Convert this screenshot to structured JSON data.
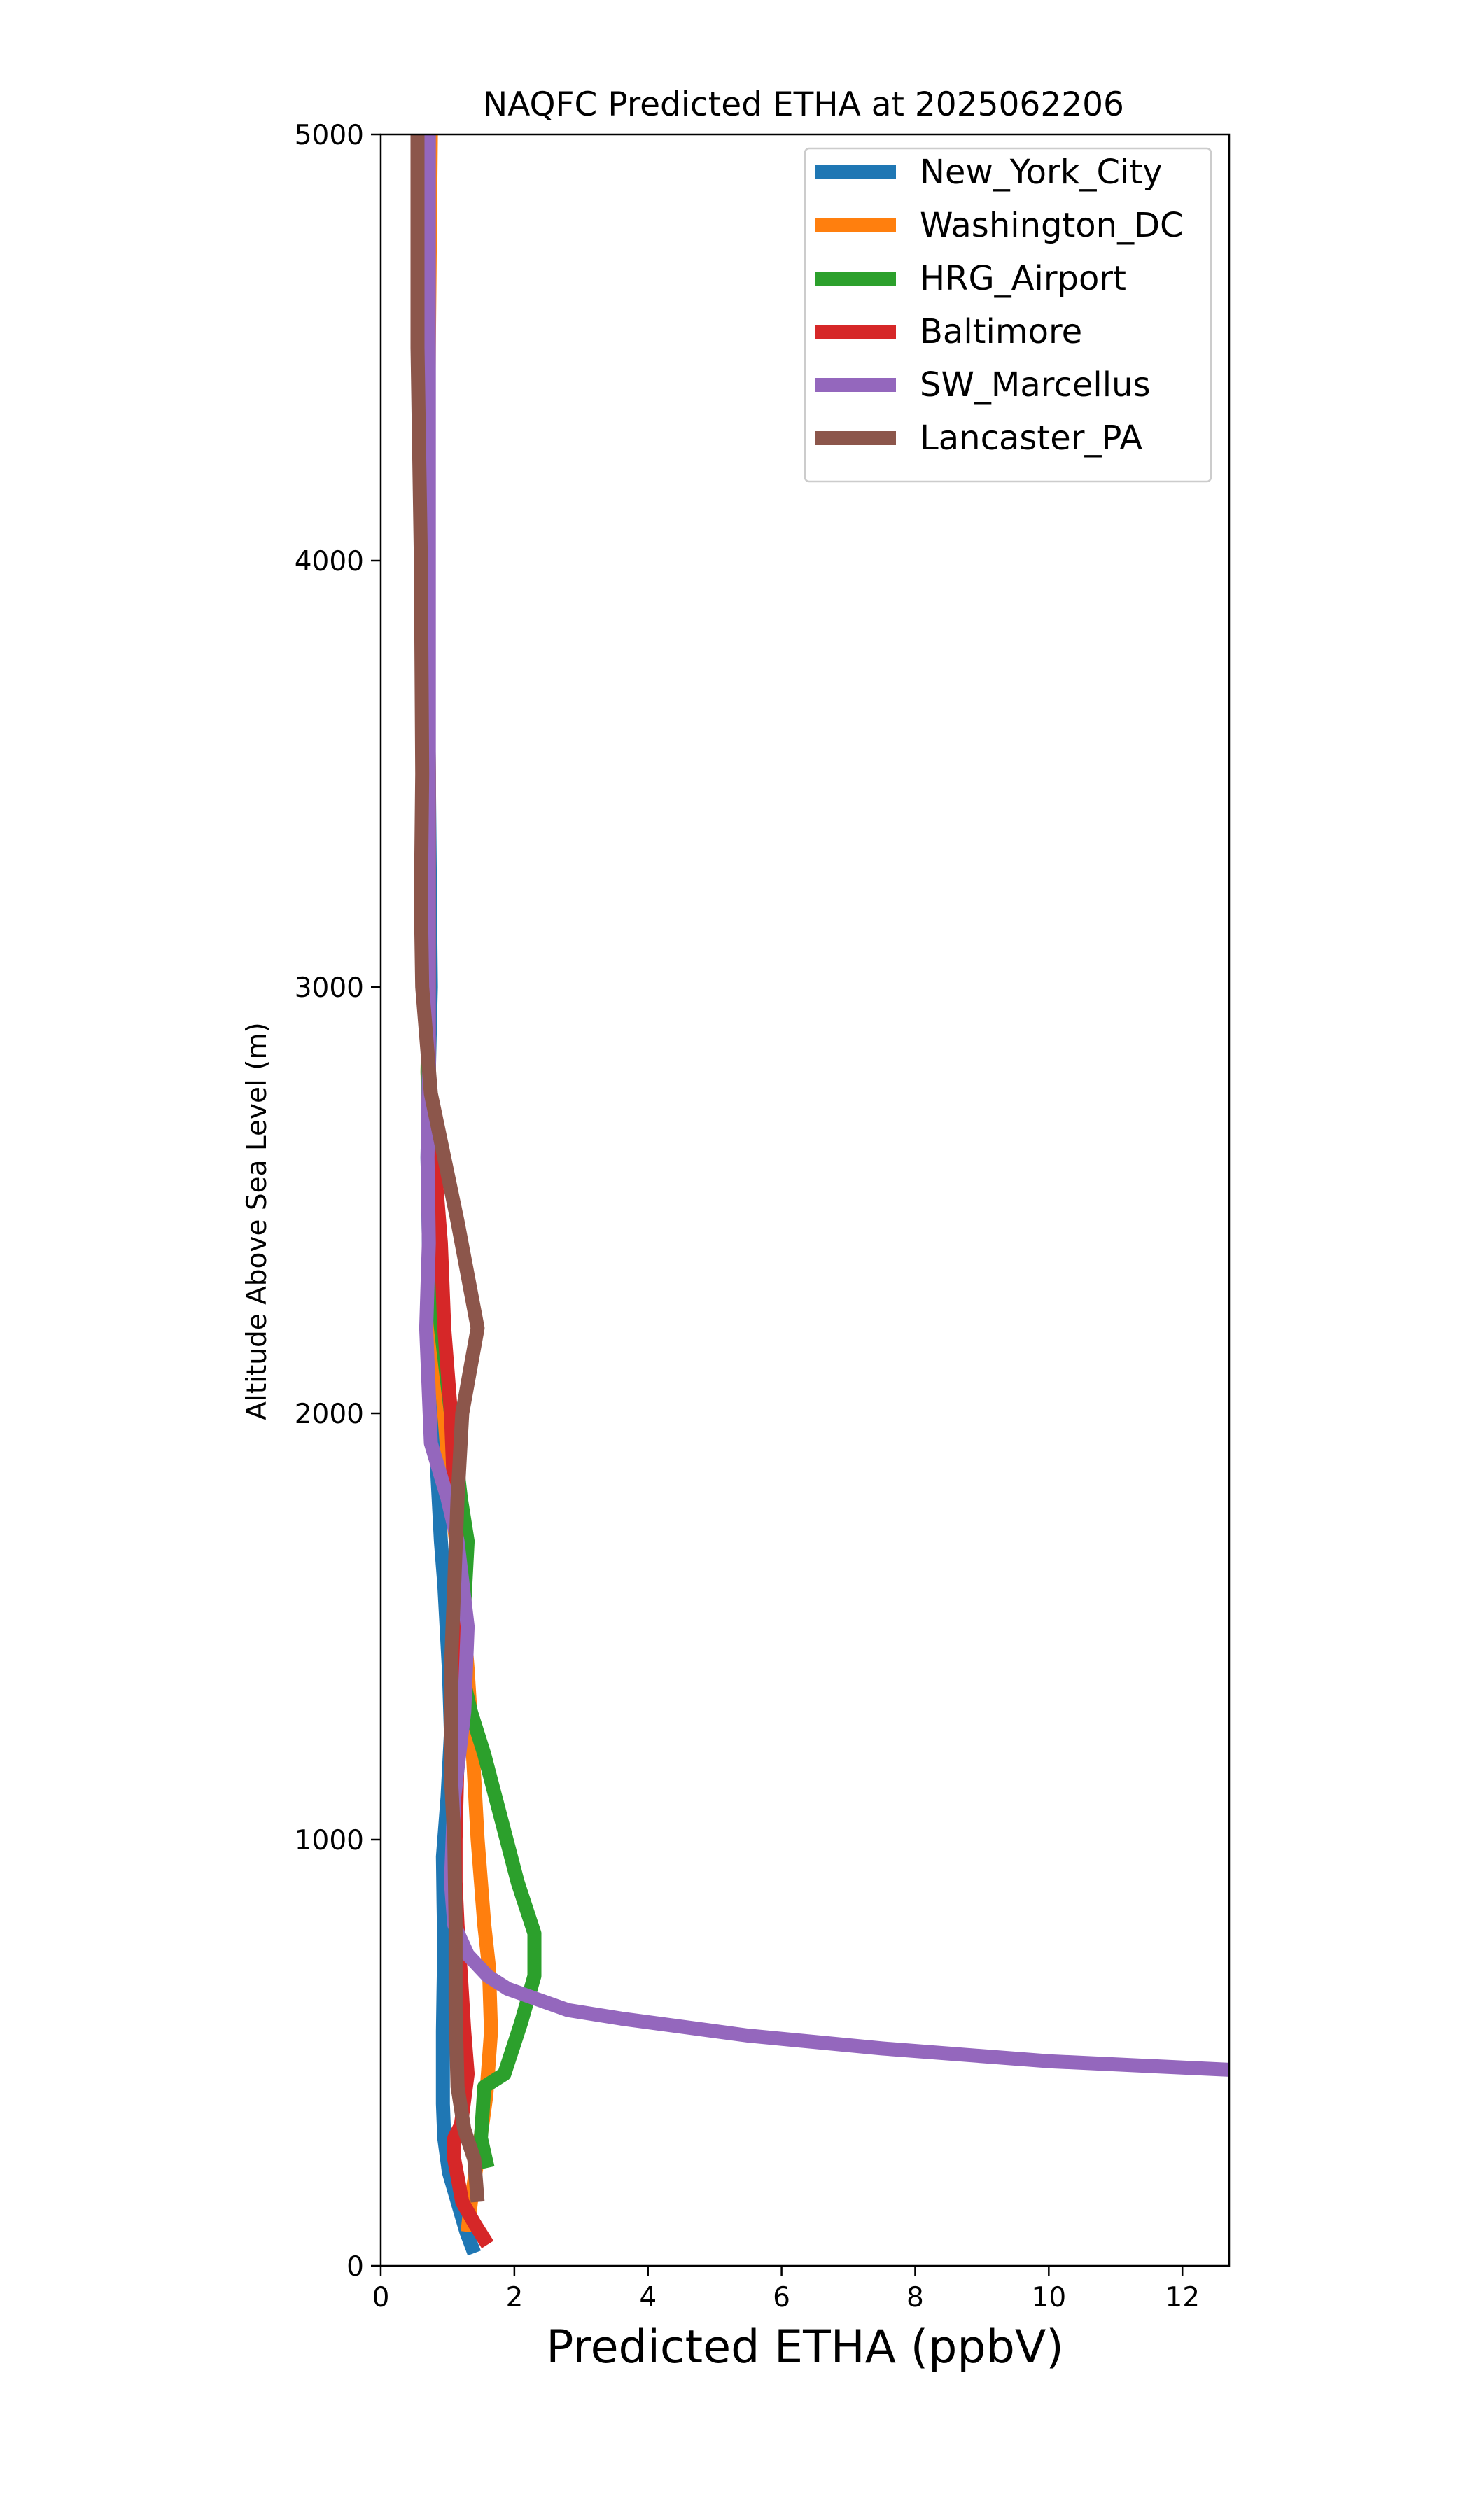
{
  "chart_data": {
    "type": "line",
    "title": "NAQFC Predicted ETHA at 2025062206",
    "xlabel": "Predicted ETHA (ppbV)",
    "ylabel": "Altitude Above Sea Level (m)",
    "xlim": [
      0,
      12.7
    ],
    "ylim": [
      0,
      5000
    ],
    "xticks": [
      0,
      2,
      4,
      6,
      8,
      10,
      12
    ],
    "yticks": [
      0,
      1000,
      2000,
      3000,
      4000,
      5000
    ],
    "grid": false,
    "legend_position": "upper-right",
    "series": [
      {
        "name": "New_York_City",
        "color": "#1f77b4",
        "points": [
          [
            1.4,
            30
          ],
          [
            1.28,
            80
          ],
          [
            1.15,
            150
          ],
          [
            1.02,
            220
          ],
          [
            0.95,
            300
          ],
          [
            0.93,
            380
          ],
          [
            0.93,
            450
          ],
          [
            0.93,
            550
          ],
          [
            0.94,
            650
          ],
          [
            0.95,
            750
          ],
          [
            0.94,
            850
          ],
          [
            0.93,
            960
          ],
          [
            1.0,
            1100
          ],
          [
            1.05,
            1250
          ],
          [
            1.02,
            1400
          ],
          [
            0.95,
            1600
          ],
          [
            0.9,
            1700
          ],
          [
            0.85,
            1850
          ],
          [
            0.8,
            2000
          ],
          [
            0.75,
            2200
          ],
          [
            0.72,
            2400
          ],
          [
            0.7,
            2600
          ],
          [
            0.72,
            2800
          ],
          [
            0.75,
            3000
          ],
          [
            0.72,
            3500
          ],
          [
            0.7,
            4000
          ],
          [
            0.7,
            4500
          ],
          [
            0.72,
            5000
          ]
        ]
      },
      {
        "name": "Washington_DC",
        "color": "#ff7f0e",
        "points": [
          [
            1.3,
            80
          ],
          [
            1.35,
            150
          ],
          [
            1.45,
            250
          ],
          [
            1.58,
            400
          ],
          [
            1.65,
            550
          ],
          [
            1.62,
            700
          ],
          [
            1.55,
            800
          ],
          [
            1.45,
            1000
          ],
          [
            1.38,
            1200
          ],
          [
            1.3,
            1400
          ],
          [
            1.2,
            1600
          ],
          [
            1.05,
            1800
          ],
          [
            0.95,
            2000
          ],
          [
            0.85,
            2200
          ],
          [
            0.78,
            2400
          ],
          [
            0.72,
            2600
          ],
          [
            0.7,
            2800
          ],
          [
            0.72,
            3000
          ],
          [
            0.72,
            3500
          ],
          [
            0.7,
            4000
          ],
          [
            0.72,
            4500
          ],
          [
            0.75,
            5000
          ]
        ]
      },
      {
        "name": "HRG_Airport",
        "color": "#2ca02c",
        "points": [
          [
            1.6,
            230
          ],
          [
            1.5,
            300
          ],
          [
            1.55,
            420
          ],
          [
            1.85,
            450
          ],
          [
            2.1,
            570
          ],
          [
            2.3,
            680
          ],
          [
            2.3,
            780
          ],
          [
            2.05,
            900
          ],
          [
            1.8,
            1050
          ],
          [
            1.55,
            1200
          ],
          [
            1.35,
            1300
          ],
          [
            1.2,
            1400
          ],
          [
            1.25,
            1550
          ],
          [
            1.3,
            1700
          ],
          [
            1.2,
            1800
          ],
          [
            1.05,
            2000
          ],
          [
            0.9,
            2200
          ],
          [
            0.8,
            2400
          ],
          [
            0.75,
            2600
          ],
          [
            0.7,
            2800
          ],
          [
            0.72,
            3000
          ],
          [
            0.72,
            3500
          ],
          [
            0.7,
            4000
          ],
          [
            0.7,
            4500
          ],
          [
            0.7,
            5000
          ]
        ]
      },
      {
        "name": "Baltimore",
        "color": "#d62728",
        "points": [
          [
            1.6,
            50
          ],
          [
            1.4,
            100
          ],
          [
            1.22,
            150
          ],
          [
            1.1,
            250
          ],
          [
            1.1,
            300
          ],
          [
            1.2,
            330
          ],
          [
            1.3,
            450
          ],
          [
            1.25,
            550
          ],
          [
            1.2,
            680
          ],
          [
            1.15,
            800
          ],
          [
            1.12,
            900
          ],
          [
            1.12,
            1000
          ],
          [
            1.15,
            1200
          ],
          [
            1.18,
            1400
          ],
          [
            1.18,
            1600
          ],
          [
            1.1,
            1800
          ],
          [
            1.05,
            2000
          ],
          [
            0.95,
            2200
          ],
          [
            0.9,
            2400
          ],
          [
            0.8,
            2600
          ],
          [
            0.72,
            2800
          ],
          [
            0.72,
            3000
          ],
          [
            0.72,
            3500
          ],
          [
            0.7,
            4000
          ],
          [
            0.7,
            4500
          ],
          [
            0.7,
            5000
          ]
        ]
      },
      {
        "name": "SW_Marcellus",
        "color": "#9467bd",
        "points": [
          [
            12.7,
            460
          ],
          [
            10.0,
            480
          ],
          [
            7.5,
            510
          ],
          [
            5.5,
            540
          ],
          [
            3.6,
            580
          ],
          [
            2.8,
            600
          ],
          [
            1.9,
            650
          ],
          [
            1.6,
            680
          ],
          [
            1.3,
            730
          ],
          [
            1.1,
            800
          ],
          [
            1.05,
            900
          ],
          [
            1.1,
            1100
          ],
          [
            1.25,
            1300
          ],
          [
            1.3,
            1500
          ],
          [
            1.15,
            1700
          ],
          [
            1.0,
            1800
          ],
          [
            0.75,
            1930
          ],
          [
            0.68,
            2200
          ],
          [
            0.72,
            2400
          ],
          [
            0.7,
            2600
          ],
          [
            0.72,
            2800
          ],
          [
            0.72,
            3000
          ],
          [
            0.72,
            3500
          ],
          [
            0.72,
            4000
          ],
          [
            0.72,
            4500
          ],
          [
            0.72,
            5000
          ]
        ]
      },
      {
        "name": "Lancaster_PA",
        "color": "#8c564b",
        "points": [
          [
            1.45,
            150
          ],
          [
            1.4,
            250
          ],
          [
            1.25,
            320
          ],
          [
            1.15,
            420
          ],
          [
            1.12,
            600
          ],
          [
            1.12,
            800
          ],
          [
            1.1,
            1000
          ],
          [
            1.05,
            1150
          ],
          [
            1.05,
            1400
          ],
          [
            1.1,
            1600
          ],
          [
            1.15,
            1800
          ],
          [
            1.22,
            2000
          ],
          [
            1.45,
            2200
          ],
          [
            1.15,
            2450
          ],
          [
            0.95,
            2600
          ],
          [
            0.75,
            2750
          ],
          [
            0.62,
            3000
          ],
          [
            0.6,
            3200
          ],
          [
            0.62,
            3500
          ],
          [
            0.6,
            4000
          ],
          [
            0.55,
            4500
          ],
          [
            0.55,
            5000
          ]
        ]
      }
    ]
  }
}
